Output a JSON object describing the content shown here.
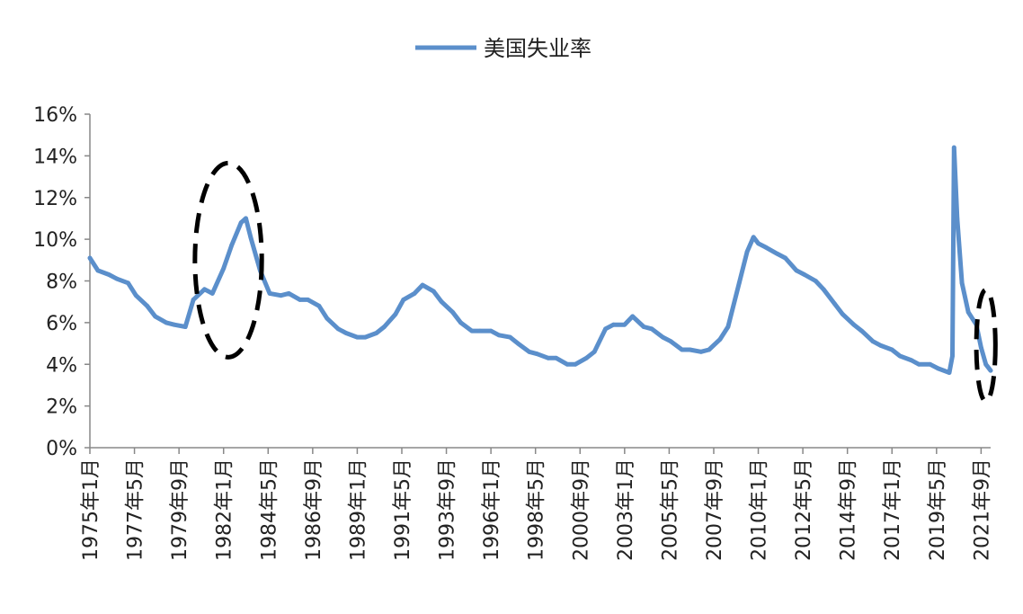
{
  "chart_data": {
    "type": "line",
    "title": "",
    "xlabel": "",
    "ylabel": "",
    "ylim": [
      0,
      16
    ],
    "y_ticks": [
      "0%",
      "2%",
      "4%",
      "6%",
      "8%",
      "10%",
      "12%",
      "14%",
      "16%"
    ],
    "x_tick_labels": [
      "1975年1月",
      "1977年5月",
      "1979年9月",
      "1982年1月",
      "1984年5月",
      "1986年9月",
      "1989年1月",
      "1991年5月",
      "1993年9月",
      "1996年1月",
      "1998年5月",
      "2000年9月",
      "2003年1月",
      "2005年5月",
      "2007年9月",
      "2010年1月",
      "2012年5月",
      "2014年9月",
      "2017年1月",
      "2019年5月",
      "2021年9月"
    ],
    "x_tick_dates": [
      "1975-01",
      "1977-05",
      "1979-09",
      "1982-01",
      "1984-05",
      "1986-09",
      "1989-01",
      "1991-05",
      "1993-09",
      "1996-01",
      "1998-05",
      "2000-09",
      "2003-01",
      "2005-05",
      "2007-09",
      "2010-01",
      "2012-05",
      "2014-09",
      "2017-01",
      "2019-05",
      "2021-09"
    ],
    "x_range": [
      "1975-01",
      "2022-03"
    ],
    "grid": false,
    "legend_position": "top-center",
    "series": [
      {
        "name": "美国失业率",
        "color": "#5B8FCB",
        "x": [
          "1975-01",
          "1975-06",
          "1976-01",
          "1976-06",
          "1977-01",
          "1977-06",
          "1978-01",
          "1978-06",
          "1979-01",
          "1979-06",
          "1980-01",
          "1980-06",
          "1981-01",
          "1981-06",
          "1982-01",
          "1982-06",
          "1982-12",
          "1983-03",
          "1983-06",
          "1983-12",
          "1984-06",
          "1985-01",
          "1985-06",
          "1986-01",
          "1986-06",
          "1987-01",
          "1987-06",
          "1988-01",
          "1988-06",
          "1989-01",
          "1989-06",
          "1990-01",
          "1990-06",
          "1991-01",
          "1991-06",
          "1992-01",
          "1992-06",
          "1993-01",
          "1993-06",
          "1994-01",
          "1994-06",
          "1995-01",
          "1995-06",
          "1996-01",
          "1996-06",
          "1997-01",
          "1997-06",
          "1998-01",
          "1998-06",
          "1999-01",
          "1999-06",
          "2000-01",
          "2000-06",
          "2001-01",
          "2001-06",
          "2002-01",
          "2002-06",
          "2003-01",
          "2003-06",
          "2004-01",
          "2004-06",
          "2005-01",
          "2005-06",
          "2006-01",
          "2006-06",
          "2007-01",
          "2007-06",
          "2008-01",
          "2008-06",
          "2009-01",
          "2009-06",
          "2009-10",
          "2010-01",
          "2010-06",
          "2011-01",
          "2011-06",
          "2012-01",
          "2012-06",
          "2013-01",
          "2013-06",
          "2014-01",
          "2014-06",
          "2015-01",
          "2015-06",
          "2016-01",
          "2016-06",
          "2017-01",
          "2017-06",
          "2018-01",
          "2018-06",
          "2019-01",
          "2019-06",
          "2020-01",
          "2020-03",
          "2020-04",
          "2020-06",
          "2020-09",
          "2021-01",
          "2021-06",
          "2021-09",
          "2021-12",
          "2022-03"
        ],
        "values": [
          9.1,
          8.5,
          8.3,
          8.1,
          7.9,
          7.3,
          6.8,
          6.3,
          6.0,
          5.9,
          5.8,
          7.1,
          7.6,
          7.4,
          8.6,
          9.7,
          10.8,
          11.0,
          10.1,
          8.5,
          7.4,
          7.3,
          7.4,
          7.1,
          7.1,
          6.8,
          6.2,
          5.7,
          5.5,
          5.3,
          5.3,
          5.5,
          5.8,
          6.4,
          7.1,
          7.4,
          7.8,
          7.5,
          7.0,
          6.5,
          6.0,
          5.6,
          5.6,
          5.6,
          5.4,
          5.3,
          5.0,
          4.6,
          4.5,
          4.3,
          4.3,
          4.0,
          4.0,
          4.3,
          4.6,
          5.7,
          5.9,
          5.9,
          6.3,
          5.8,
          5.7,
          5.3,
          5.1,
          4.7,
          4.7,
          4.6,
          4.7,
          5.2,
          5.8,
          7.9,
          9.4,
          10.1,
          9.8,
          9.6,
          9.3,
          9.1,
          8.5,
          8.3,
          8.0,
          7.6,
          6.9,
          6.4,
          5.9,
          5.6,
          5.1,
          4.9,
          4.7,
          4.4,
          4.2,
          4.0,
          4.0,
          3.8,
          3.6,
          4.4,
          14.4,
          11.0,
          7.9,
          6.5,
          5.9,
          4.8,
          4.0,
          3.7
        ]
      }
    ],
    "annotations": [
      {
        "shape": "dashed-ellipse",
        "around": [
          "1980-07",
          "1984-01"
        ]
      },
      {
        "shape": "dashed-ellipse",
        "around": [
          "2021-06",
          "2022-06"
        ]
      }
    ]
  }
}
